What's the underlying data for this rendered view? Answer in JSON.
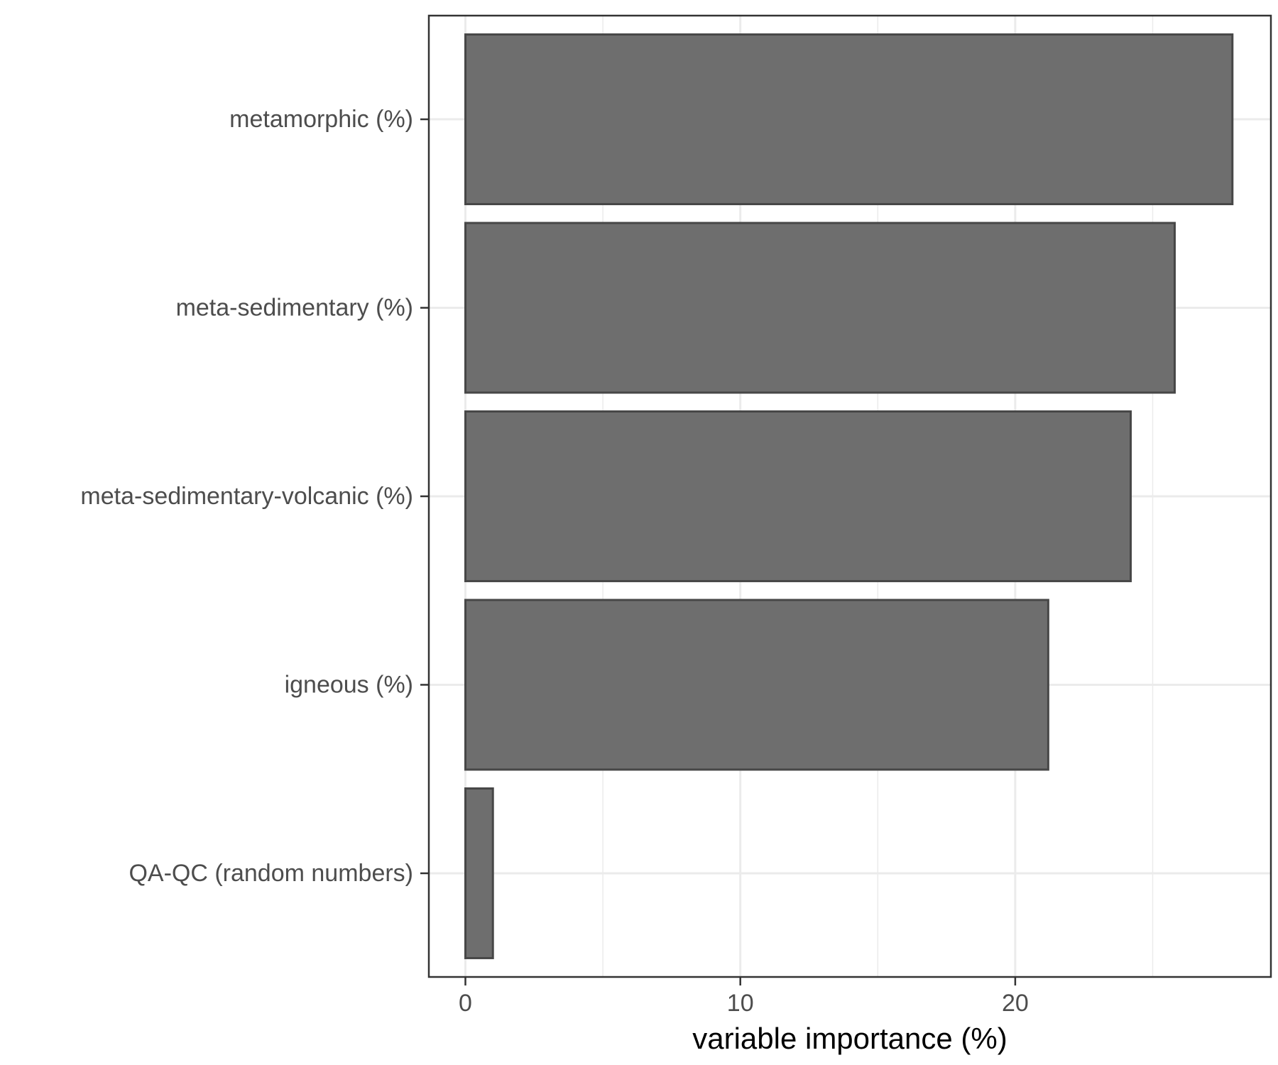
{
  "chart_data": {
    "type": "bar",
    "orientation": "horizontal",
    "categories": [
      "metamorphic (%)",
      "meta-sedimentary (%)",
      "meta-sedimentary-volcanic (%)",
      "igneous (%)",
      "QA-QC (random numbers)"
    ],
    "values": [
      27.9,
      25.8,
      24.2,
      21.2,
      1.0
    ],
    "title": "",
    "xlabel": "variable importance (%)",
    "ylabel": "",
    "xlim": [
      -1.33,
      29.3
    ],
    "x_ticks": [
      0,
      10,
      20
    ],
    "x_minor_ticks": [
      5,
      15,
      25
    ],
    "grid": true,
    "legend": "none",
    "colors": {
      "bar_fill": "#6e6e6e",
      "bar_stroke": "#474747",
      "grid": "#ebebeb",
      "panel_border": "#333333",
      "tick_text": "#4d4d4d",
      "title_text": "#000000"
    }
  }
}
